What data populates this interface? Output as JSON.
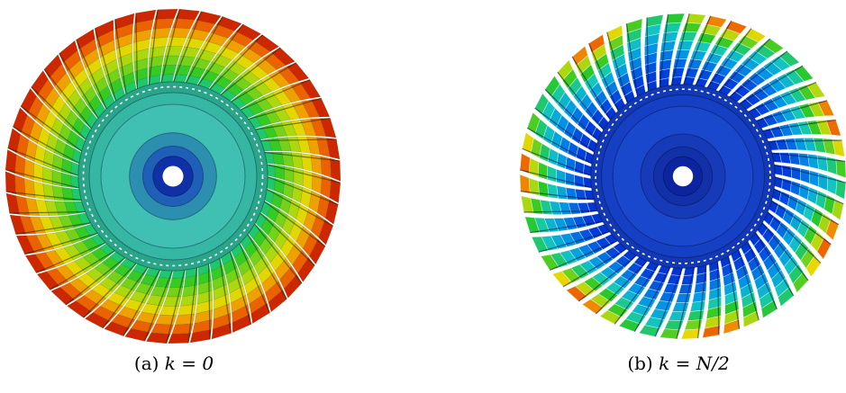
{
  "figure": {
    "subfigures": [
      {
        "label": "(a)",
        "math": "k = 0",
        "mode": "k0"
      },
      {
        "label": "(b)",
        "math": "k = N/2",
        "mode": "kN2"
      }
    ]
  }
}
